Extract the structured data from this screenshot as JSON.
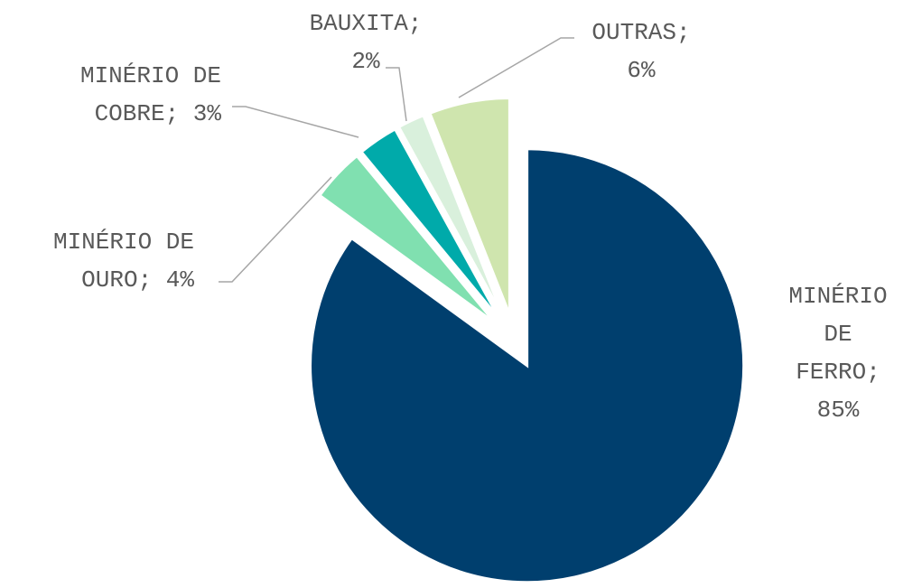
{
  "chart_data": {
    "type": "pie",
    "labels": [
      "MINÉRIO DE FERRO; 85%",
      "MINÉRIO DE OURO; 4%",
      "MINÉRIO DE COBRE; 3%",
      "BAUXITA; 2%",
      "OUTRAS; 6%"
    ],
    "values": [
      85,
      4,
      3,
      2,
      6
    ],
    "colors": [
      "#003f6e",
      "#80e0b0",
      "#00aaaa",
      "#d9f0dc",
      "#cfe5ae"
    ]
  }
}
